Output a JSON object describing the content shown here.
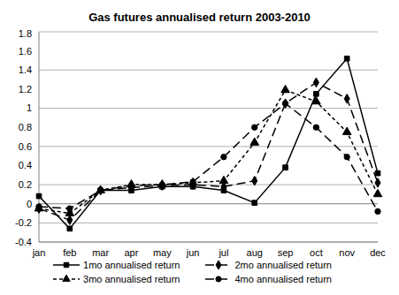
{
  "chart_data": {
    "type": "line",
    "title": "Gas futures annualised return 2003-2010",
    "categories": [
      "jan",
      "feb",
      "mar",
      "apr",
      "may",
      "jun",
      "jul",
      "aug",
      "sep",
      "oct",
      "nov",
      "dec"
    ],
    "series": [
      {
        "name": "1mo annualised return",
        "color": "#000000",
        "marker": "square",
        "line_style": "solid",
        "values": [
          0.08,
          -0.26,
          0.14,
          0.14,
          0.18,
          0.18,
          0.14,
          0.01,
          0.38,
          1.15,
          1.52,
          0.32
        ]
      },
      {
        "name": "2mo annualised return",
        "color": "#000000",
        "marker": "diamond",
        "line_style": "long_dash",
        "values": [
          -0.05,
          -0.17,
          0.14,
          0.17,
          0.19,
          0.2,
          0.18,
          0.24,
          1.05,
          1.27,
          1.1,
          0.22
        ]
      },
      {
        "name": "3mo annualised return",
        "color": "#000000",
        "marker": "triangle",
        "line_style": "short_dash",
        "values": [
          -0.05,
          -0.1,
          0.14,
          0.2,
          0.2,
          0.22,
          0.24,
          0.64,
          1.19,
          1.07,
          0.75,
          0.1
        ]
      },
      {
        "name": "4mo annualised return",
        "color": "#000000",
        "marker": "circle",
        "line_style": "long_dash",
        "values": [
          -0.03,
          -0.05,
          0.14,
          0.19,
          0.2,
          0.23,
          0.49,
          0.8,
          1.05,
          0.8,
          0.49,
          -0.08
        ]
      }
    ],
    "ylim": [
      -0.4,
      1.8
    ],
    "yticks": [
      -0.4,
      -0.2,
      0,
      0.2,
      0.4,
      0.6,
      0.8,
      1,
      1.2,
      1.4,
      1.6,
      1.8
    ],
    "grid": true,
    "legend": "bottom"
  }
}
